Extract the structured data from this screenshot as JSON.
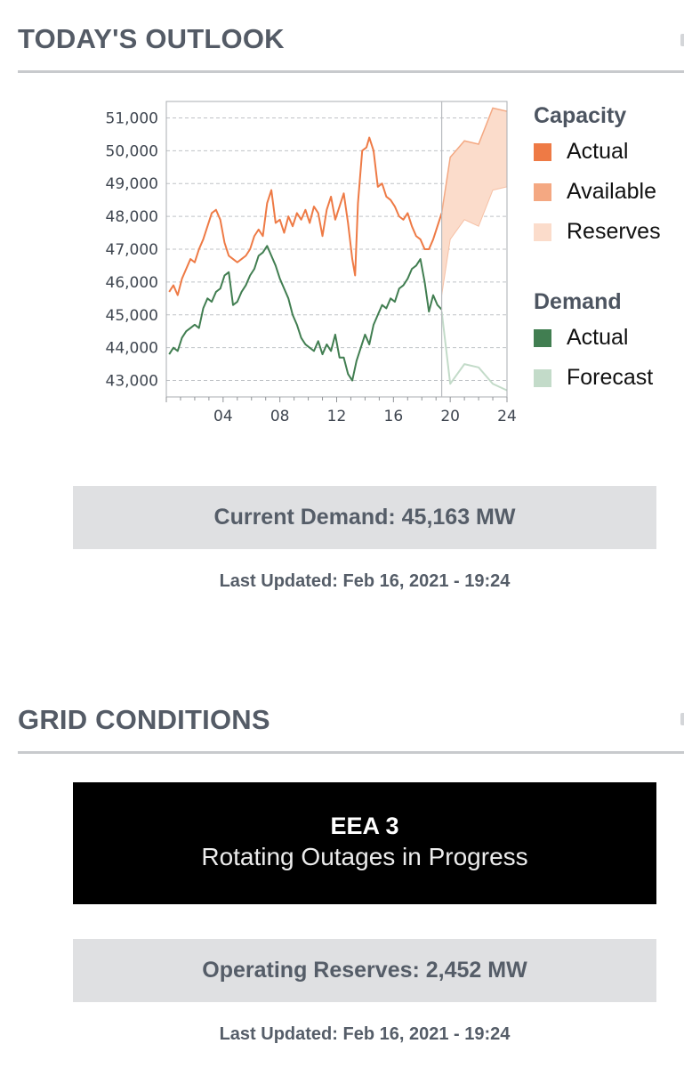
{
  "outlook": {
    "title": "TODAY'S OUTLOOK",
    "current_demand_label": "Current Demand: 45,163 MW",
    "last_updated": "Last Updated: Feb 16, 2021 - 19:24"
  },
  "legend": {
    "capacity_title": "Capacity",
    "capacity_items": [
      {
        "label": "Actual",
        "color": "#ee7a45"
      },
      {
        "label": "Available",
        "color": "#f4a882"
      },
      {
        "label": "Reserves",
        "color": "#fbdccb"
      }
    ],
    "demand_title": "Demand",
    "demand_items": [
      {
        "label": "Actual",
        "color": "#417e51"
      },
      {
        "label": "Forecast",
        "color": "#c3dbc9"
      }
    ]
  },
  "grid": {
    "title": "GRID CONDITIONS",
    "eea_level": "EEA 3",
    "eea_status": "Rotating Outages in Progress",
    "operating_reserves_label": "Operating Reserves: 2,452 MW",
    "last_updated": "Last Updated: Feb 16, 2021 - 19:24"
  },
  "chart_data": {
    "type": "line",
    "x_unit": "hour of day",
    "xlim": [
      0,
      24
    ],
    "ylim": [
      42500,
      51500
    ],
    "x_ticks": [
      4,
      8,
      12,
      16,
      20,
      24
    ],
    "x_tick_labels": [
      "04",
      "08",
      "12",
      "16",
      "20",
      "24"
    ],
    "y_ticks": [
      43000,
      44000,
      45000,
      46000,
      47000,
      48000,
      49000,
      50000,
      51000
    ],
    "y_tick_labels": [
      "43,000",
      "44,000",
      "45,000",
      "46,000",
      "47,000",
      "48,000",
      "49,000",
      "50,000",
      "51,000"
    ],
    "current_time_marker": 19.4,
    "grid": true,
    "legend_position": "right",
    "series": [
      {
        "name": "Capacity Actual",
        "color": "#ee7a45",
        "points": [
          [
            0.2,
            45700
          ],
          [
            0.5,
            45900
          ],
          [
            0.8,
            45600
          ],
          [
            1.1,
            46100
          ],
          [
            1.4,
            46400
          ],
          [
            1.7,
            46700
          ],
          [
            2.0,
            46600
          ],
          [
            2.3,
            47000
          ],
          [
            2.6,
            47300
          ],
          [
            2.9,
            47700
          ],
          [
            3.2,
            48100
          ],
          [
            3.5,
            48200
          ],
          [
            3.8,
            47900
          ],
          [
            4.1,
            47200
          ],
          [
            4.4,
            46800
          ],
          [
            4.7,
            46700
          ],
          [
            5.0,
            46600
          ],
          [
            5.3,
            46700
          ],
          [
            5.6,
            46800
          ],
          [
            5.9,
            47000
          ],
          [
            6.2,
            47400
          ],
          [
            6.5,
            47600
          ],
          [
            6.8,
            47400
          ],
          [
            7.1,
            48400
          ],
          [
            7.4,
            48800
          ],
          [
            7.7,
            47800
          ],
          [
            8.0,
            47900
          ],
          [
            8.3,
            47500
          ],
          [
            8.6,
            48000
          ],
          [
            8.9,
            47700
          ],
          [
            9.2,
            48100
          ],
          [
            9.5,
            47900
          ],
          [
            9.8,
            48200
          ],
          [
            10.1,
            47800
          ],
          [
            10.4,
            48300
          ],
          [
            10.7,
            48100
          ],
          [
            11.0,
            47400
          ],
          [
            11.3,
            48200
          ],
          [
            11.6,
            48600
          ],
          [
            11.9,
            47900
          ],
          [
            12.2,
            48300
          ],
          [
            12.5,
            48700
          ],
          [
            12.8,
            47800
          ],
          [
            13.1,
            46700
          ],
          [
            13.3,
            46200
          ],
          [
            13.5,
            48400
          ],
          [
            13.8,
            50000
          ],
          [
            14.1,
            50100
          ],
          [
            14.3,
            50400
          ],
          [
            14.6,
            50000
          ],
          [
            14.9,
            48900
          ],
          [
            15.2,
            49000
          ],
          [
            15.5,
            48600
          ],
          [
            15.8,
            48500
          ],
          [
            16.1,
            48300
          ],
          [
            16.4,
            48000
          ],
          [
            16.7,
            47900
          ],
          [
            17.0,
            48100
          ],
          [
            17.3,
            47700
          ],
          [
            17.6,
            47400
          ],
          [
            17.9,
            47300
          ],
          [
            18.2,
            47000
          ],
          [
            18.5,
            47000
          ],
          [
            18.8,
            47300
          ],
          [
            19.1,
            47700
          ],
          [
            19.4,
            48100
          ]
        ]
      },
      {
        "name": "Available Capacity (forecast)",
        "color": "#f4a882",
        "points": [
          [
            19.4,
            48100
          ],
          [
            20.0,
            49800
          ],
          [
            21.0,
            50300
          ],
          [
            22.0,
            50200
          ],
          [
            23.0,
            51300
          ],
          [
            24.0,
            51200
          ]
        ]
      },
      {
        "name": "Reserves lower bound",
        "color": "#fbdccb",
        "points": [
          [
            19.4,
            45600
          ],
          [
            20.0,
            47300
          ],
          [
            21.0,
            47900
          ],
          [
            22.0,
            47700
          ],
          [
            23.0,
            48800
          ],
          [
            24.0,
            48900
          ]
        ]
      },
      {
        "name": "Demand Actual",
        "color": "#417e51",
        "points": [
          [
            0.2,
            43800
          ],
          [
            0.5,
            44000
          ],
          [
            0.8,
            43900
          ],
          [
            1.1,
            44300
          ],
          [
            1.4,
            44500
          ],
          [
            1.7,
            44600
          ],
          [
            2.0,
            44700
          ],
          [
            2.3,
            44600
          ],
          [
            2.6,
            45200
          ],
          [
            2.9,
            45500
          ],
          [
            3.2,
            45400
          ],
          [
            3.5,
            45700
          ],
          [
            3.8,
            45800
          ],
          [
            4.1,
            46200
          ],
          [
            4.4,
            46300
          ],
          [
            4.7,
            45300
          ],
          [
            5.0,
            45400
          ],
          [
            5.3,
            45700
          ],
          [
            5.6,
            45900
          ],
          [
            5.9,
            46200
          ],
          [
            6.2,
            46400
          ],
          [
            6.5,
            46800
          ],
          [
            6.8,
            46900
          ],
          [
            7.1,
            47100
          ],
          [
            7.4,
            46800
          ],
          [
            7.7,
            46500
          ],
          [
            8.0,
            46100
          ],
          [
            8.3,
            45800
          ],
          [
            8.6,
            45500
          ],
          [
            8.9,
            45000
          ],
          [
            9.2,
            44700
          ],
          [
            9.5,
            44300
          ],
          [
            9.8,
            44100
          ],
          [
            10.1,
            44000
          ],
          [
            10.4,
            43900
          ],
          [
            10.7,
            44200
          ],
          [
            11.0,
            43800
          ],
          [
            11.3,
            44100
          ],
          [
            11.6,
            43900
          ],
          [
            11.9,
            44400
          ],
          [
            12.2,
            43700
          ],
          [
            12.5,
            43700
          ],
          [
            12.8,
            43200
          ],
          [
            13.1,
            43000
          ],
          [
            13.4,
            43600
          ],
          [
            13.7,
            44000
          ],
          [
            14.0,
            44400
          ],
          [
            14.3,
            44100
          ],
          [
            14.6,
            44700
          ],
          [
            14.9,
            45000
          ],
          [
            15.2,
            45300
          ],
          [
            15.5,
            45200
          ],
          [
            15.8,
            45500
          ],
          [
            16.1,
            45400
          ],
          [
            16.4,
            45800
          ],
          [
            16.7,
            45900
          ],
          [
            17.0,
            46100
          ],
          [
            17.3,
            46400
          ],
          [
            17.6,
            46500
          ],
          [
            17.9,
            46700
          ],
          [
            18.2,
            46000
          ],
          [
            18.5,
            45100
          ],
          [
            18.8,
            45600
          ],
          [
            19.1,
            45300
          ],
          [
            19.4,
            45163
          ]
        ]
      },
      {
        "name": "Demand Forecast",
        "color": "#c3dbc9",
        "points": [
          [
            19.4,
            45100
          ],
          [
            20.0,
            42900
          ],
          [
            21.0,
            43500
          ],
          [
            22.0,
            43400
          ],
          [
            23.0,
            42900
          ],
          [
            24.0,
            42700
          ]
        ]
      }
    ]
  }
}
